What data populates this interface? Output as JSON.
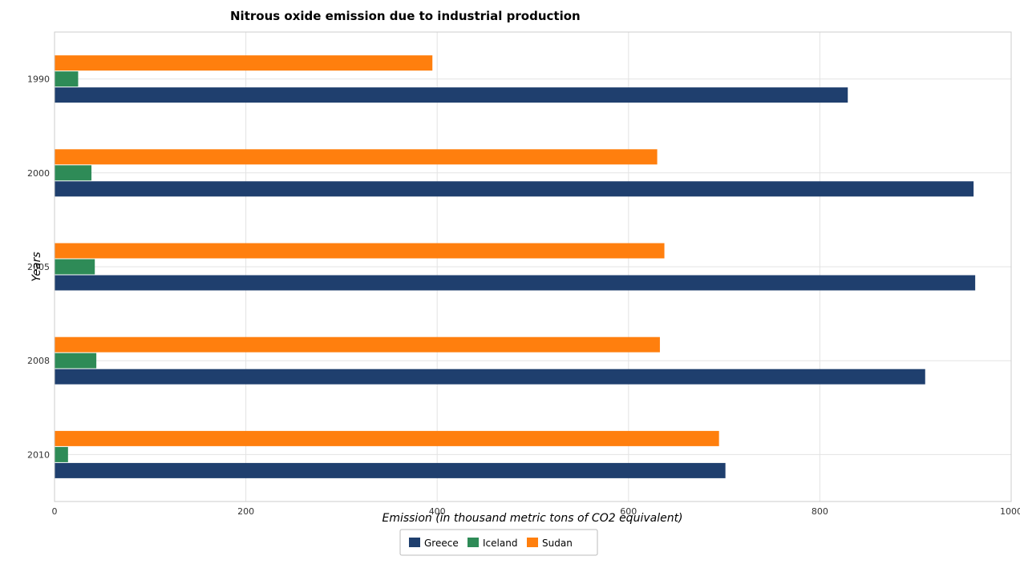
{
  "chart_data": {
    "type": "bar",
    "orientation": "horizontal",
    "title": "Nitrous oxide emission due to industrial production",
    "xlabel": "Emission (in thousand metric tons of CO2 equivalent)",
    "ylabel": "Years",
    "categories": [
      "1990",
      "2000",
      "2005",
      "2008",
      "2010"
    ],
    "xlim": [
      0,
      1000
    ],
    "xticks": [
      "0",
      "200",
      "400",
      "600",
      "800",
      "1000"
    ],
    "grid": true,
    "legend_position": "bottom-center",
    "series": [
      {
        "name": "Greece",
        "color": "#1f3f6e",
        "values": [
          829.2,
          960.7,
          962.4,
          910.1,
          701.3
        ]
      },
      {
        "name": "Iceland",
        "color": "#2e8b57",
        "values": [
          24.7,
          38.6,
          42.1,
          43.7,
          14.1
        ]
      },
      {
        "name": "Sudan",
        "color": "#ff7f0e",
        "values": [
          395.0,
          630.0,
          637.5,
          632.8,
          694.6
        ]
      }
    ]
  }
}
